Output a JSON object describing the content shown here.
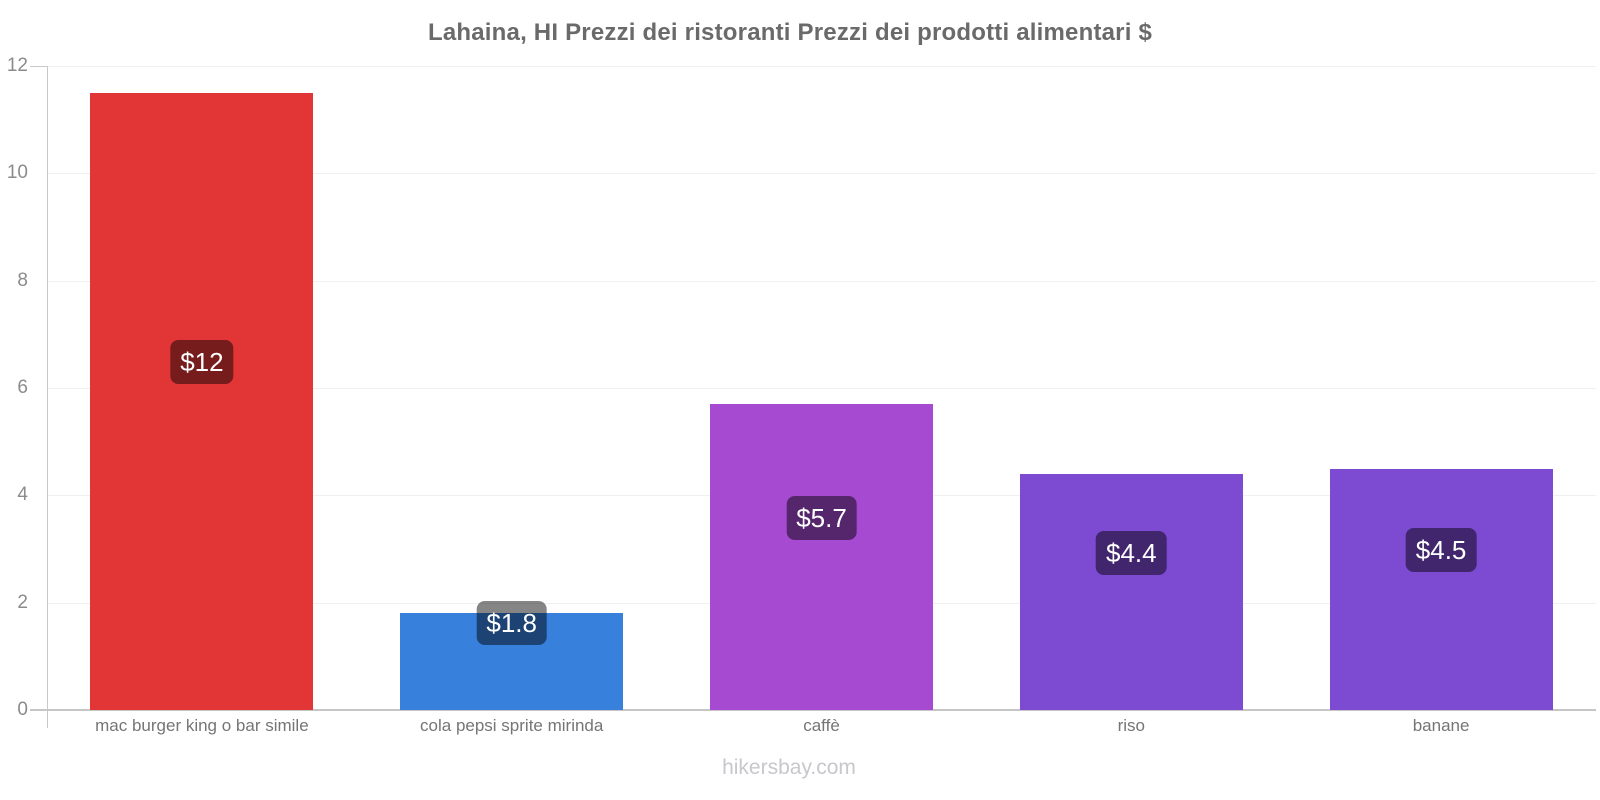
{
  "chart_data": {
    "type": "bar",
    "title": "Lahaina, HI Prezzi dei ristoranti Prezzi dei prodotti alimentari $",
    "categories": [
      "mac burger king o bar simile",
      "cola pepsi sprite mirinda",
      "caffè",
      "riso",
      "banane"
    ],
    "values": [
      11.5,
      1.8,
      5.7,
      4.4,
      4.5
    ],
    "value_labels": [
      "$12",
      "$1.8",
      "$5.7",
      "$4.4",
      "$4.5"
    ],
    "bar_colors": [
      "#e23636",
      "#3781dd",
      "#a64ad2",
      "#7d4ad2",
      "#7d4ad2"
    ],
    "xlabel": "",
    "ylabel": "",
    "ylim": [
      0,
      12
    ],
    "yticks": [
      0,
      2,
      4,
      6,
      8,
      10,
      12
    ],
    "grid": true,
    "legend": "none",
    "value_label_bg": "rgba(0,0,0,0.48)",
    "value_label_color": "#ffffff",
    "axis_color": "#c9c9c9",
    "gridline_color": "#f0f0f0"
  },
  "footer": {
    "text": "hikersbay.com"
  }
}
